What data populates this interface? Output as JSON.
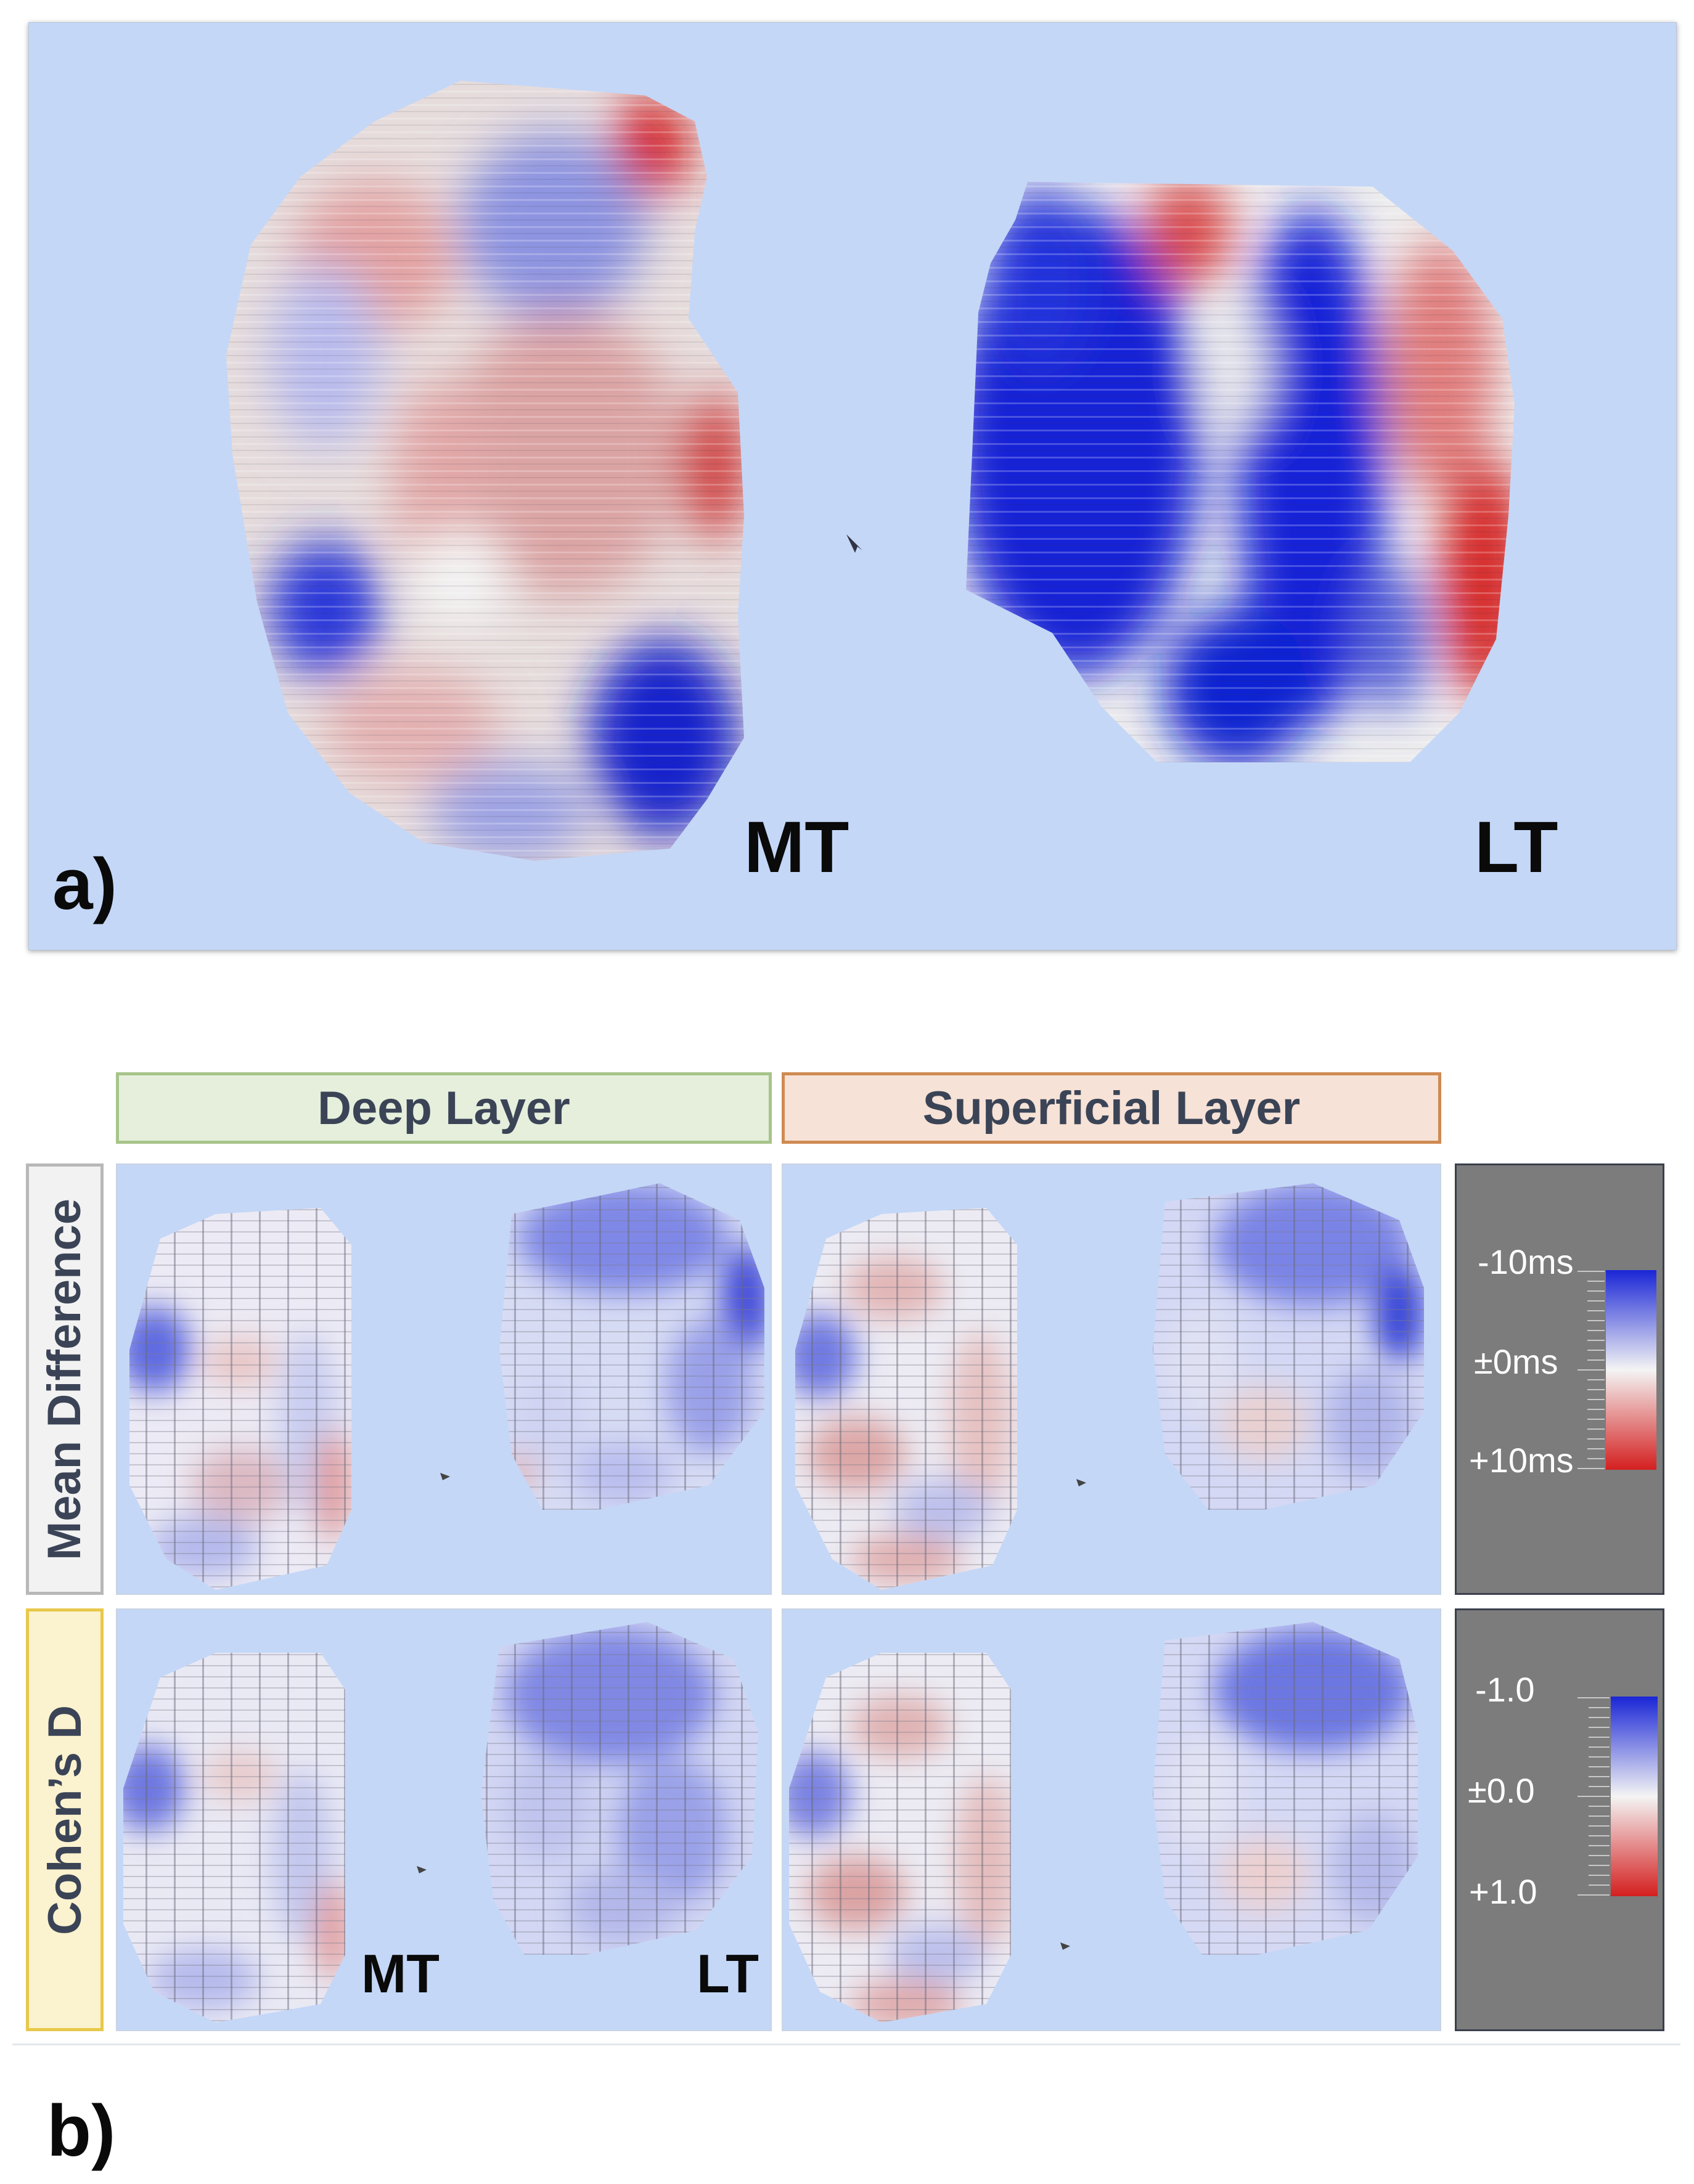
{
  "panel_a": {
    "label": "a)",
    "regions": [
      {
        "name": "MT"
      },
      {
        "name": "LT"
      }
    ]
  },
  "panel_b": {
    "label": "b)",
    "column_headers": [
      "Deep Layer",
      "Superficial Layer"
    ],
    "row_headers": [
      "Mean Difference",
      "Cohen’s D"
    ],
    "region_labels": [
      "MT",
      "LT"
    ],
    "legends": [
      {
        "ticks": [
          "-10ms",
          "±0ms",
          "+10ms"
        ]
      },
      {
        "ticks": [
          "-1.0",
          "±0.0",
          "+1.0"
        ]
      }
    ]
  },
  "colors": {
    "background": "#c4d7f7",
    "negative": "#1a26d6",
    "neutral": "#f2f2f2",
    "positive": "#d41f1f",
    "deep_border": "#a7c48a",
    "deep_fill": "#e6efdc",
    "superficial_border": "#cf8a52",
    "superficial_fill": "#f6e2d6",
    "mean_border": "#b8b8b8",
    "cohens_border": "#e8c84a",
    "cohens_fill": "#fbf2cf",
    "legend_bg": "#7c7c7c"
  }
}
